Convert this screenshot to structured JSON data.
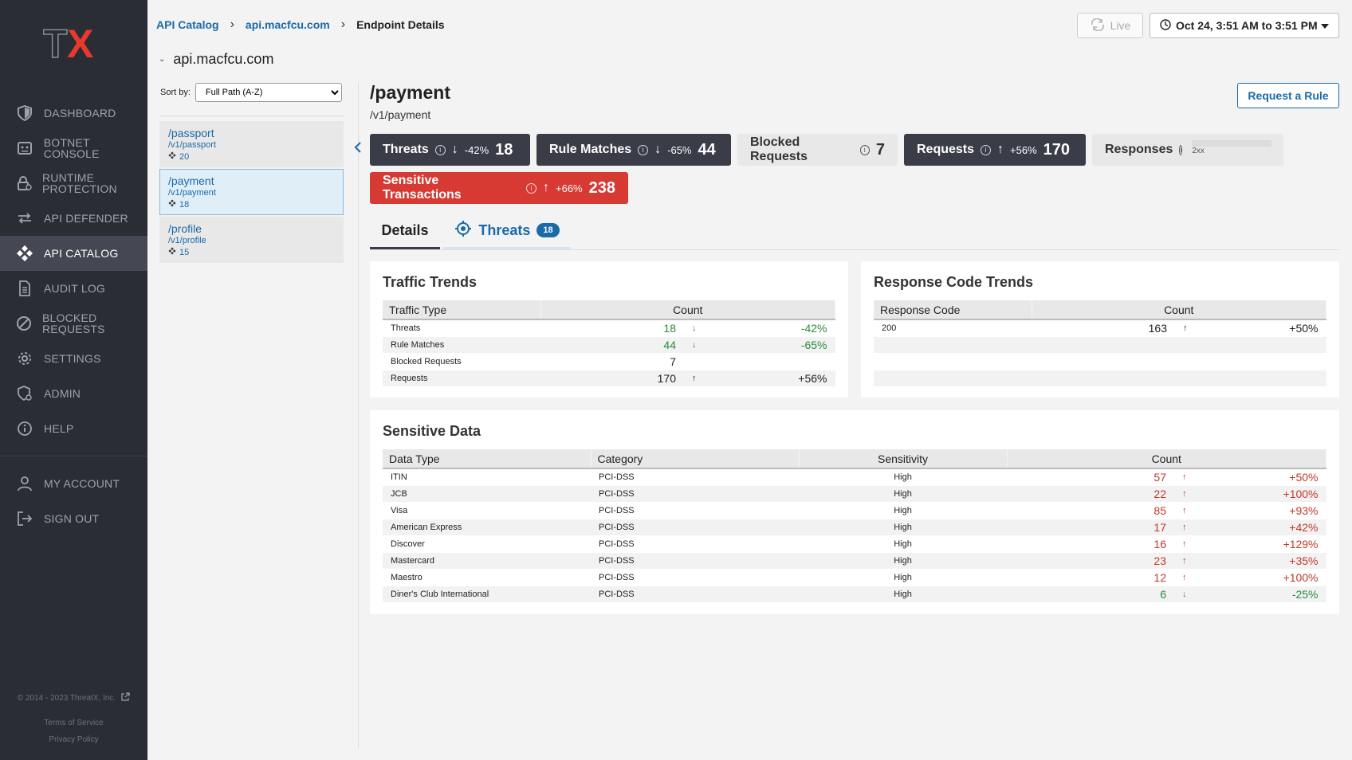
{
  "sidebar": {
    "logo_text": "TX",
    "items": [
      {
        "label": "DASHBOARD",
        "icon": "shield-icon"
      },
      {
        "label": "BOTNET CONSOLE",
        "icon": "robot-icon"
      },
      {
        "label": "RUNTIME PROTECTION",
        "icon": "lock-icon"
      },
      {
        "label": "API DEFENDER",
        "icon": "arrows-icon"
      },
      {
        "label": "API CATALOG",
        "icon": "catalog-icon"
      },
      {
        "label": "AUDIT LOG",
        "icon": "document-icon"
      },
      {
        "label": "BLOCKED REQUESTS",
        "icon": "block-icon"
      },
      {
        "label": "SETTINGS",
        "icon": "gear-icon"
      },
      {
        "label": "ADMIN",
        "icon": "admin-icon"
      },
      {
        "label": "HELP",
        "icon": "info-icon"
      }
    ],
    "account_items": [
      {
        "label": "MY ACCOUNT",
        "icon": "user-icon"
      },
      {
        "label": "SIGN OUT",
        "icon": "signout-icon"
      }
    ],
    "footer": {
      "copyright": "© 2014 - 2023 ThreatX, Inc.",
      "terms": "Terms of Service",
      "privacy": "Privacy Policy"
    }
  },
  "breadcrumb": {
    "root": "API Catalog",
    "host": "api.macfcu.com",
    "current": "Endpoint Details"
  },
  "header": {
    "live_label": "Live",
    "date_range": "Oct 24, 3:51 AM to 3:51 PM"
  },
  "catalog": {
    "host": "api.macfcu.com",
    "sort_label": "Sort by:",
    "sort_value": "Full Path (A-Z)",
    "endpoints": [
      {
        "name": "/passport",
        "path": "/v1/passport",
        "count": "20"
      },
      {
        "name": "/payment",
        "path": "/v1/payment",
        "count": "18"
      },
      {
        "name": "/profile",
        "path": "/v1/profile",
        "count": "15"
      }
    ]
  },
  "endpoint": {
    "title": "/payment",
    "path": "/v1/payment",
    "request_rule_label": "Request a Rule"
  },
  "metrics": {
    "threats": {
      "label": "Threats",
      "pct": "-42%",
      "value": "18"
    },
    "rule_matches": {
      "label": "Rule Matches",
      "pct": "-65%",
      "value": "44"
    },
    "blocked": {
      "label": "Blocked Requests",
      "value": "7"
    },
    "requests": {
      "label": "Requests",
      "pct": "+56%",
      "value": "170"
    },
    "responses": {
      "label": "Responses",
      "bar_label": "2xx"
    },
    "sensitive": {
      "label": "Sensitive Transactions",
      "pct": "+66%",
      "value": "238"
    }
  },
  "tabs": {
    "details": "Details",
    "threats": "Threats",
    "threats_count": "18"
  },
  "traffic": {
    "title": "Traffic Trends",
    "headers": [
      "Traffic Type",
      "Count"
    ],
    "rows": [
      {
        "type": "Threats",
        "count": "18",
        "pct": "-42%"
      },
      {
        "type": "Rule Matches",
        "count": "44",
        "pct": "-65%"
      },
      {
        "type": "Blocked Requests",
        "count": "7",
        "pct": ""
      },
      {
        "type": "Requests",
        "count": "170",
        "pct": "+56%"
      }
    ]
  },
  "response_codes": {
    "title": "Response Code Trends",
    "headers": [
      "Response Code",
      "Count"
    ],
    "rows": [
      {
        "code": "200",
        "count": "163",
        "pct": "+50%"
      }
    ]
  },
  "sensitive": {
    "title": "Sensitive Data",
    "headers": [
      "Data Type",
      "Category",
      "Sensitivity",
      "Count"
    ],
    "rows": [
      {
        "type": "ITIN",
        "category": "PCI-DSS",
        "sensitivity": "High",
        "count": "57",
        "pct": "+50%"
      },
      {
        "type": "JCB",
        "category": "PCI-DSS",
        "sensitivity": "High",
        "count": "22",
        "pct": "+100%"
      },
      {
        "type": "Visa",
        "category": "PCI-DSS",
        "sensitivity": "High",
        "count": "85",
        "pct": "+93%"
      },
      {
        "type": "American Express",
        "category": "PCI-DSS",
        "sensitivity": "High",
        "count": "17",
        "pct": "+42%"
      },
      {
        "type": "Discover",
        "category": "PCI-DSS",
        "sensitivity": "High",
        "count": "16",
        "pct": "+129%"
      },
      {
        "type": "Mastercard",
        "category": "PCI-DSS",
        "sensitivity": "High",
        "count": "23",
        "pct": "+35%"
      },
      {
        "type": "Maestro",
        "category": "PCI-DSS",
        "sensitivity": "High",
        "count": "12",
        "pct": "+100%"
      },
      {
        "type": "Diner's Club International",
        "category": "PCI-DSS",
        "sensitivity": "High",
        "count": "6",
        "pct": "-25%"
      }
    ]
  },
  "colors": {
    "sidebar_bg": "#2b2d35",
    "accent": "#1a6aa8",
    "danger": "#d63a32",
    "positive": "#2a8a3a"
  }
}
